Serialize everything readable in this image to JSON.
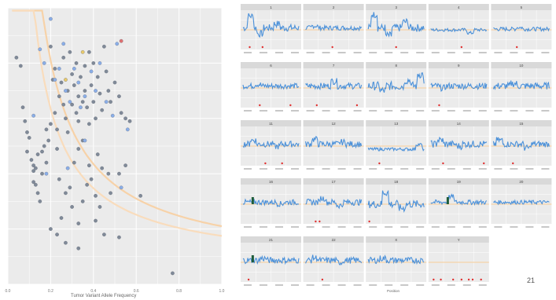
{
  "page_number": "21",
  "chart_data": [
    {
      "type": "scatter",
      "title": "",
      "xlabel": "Tumor Variant Allele Frequency",
      "ylabel": "",
      "xlim": [
        0,
        1
      ],
      "ylim": [
        0,
        1
      ],
      "x_ticks": [
        "0.0",
        "0.2",
        "0.4",
        "0.6",
        "0.8",
        "1.0"
      ],
      "grid": true,
      "curves": [
        {
          "name": "",
          "color": "#f7d2a8",
          "k": 0.15
        },
        {
          "name": "",
          "color": "#f9dcbc",
          "k": 0.115
        }
      ],
      "series": [
        {
          "name": "",
          "color": "#808a98",
          "points": [
            [
              0.04,
              0.82
            ],
            [
              0.06,
              0.79
            ],
            [
              0.07,
              0.64
            ],
            [
              0.08,
              0.59
            ],
            [
              0.09,
              0.55
            ],
            [
              0.09,
              0.48
            ],
            [
              0.1,
              0.53
            ],
            [
              0.11,
              0.45
            ],
            [
              0.12,
              0.43
            ],
            [
              0.12,
              0.41
            ],
            [
              0.13,
              0.42
            ],
            [
              0.12,
              0.37
            ],
            [
              0.13,
              0.36
            ],
            [
              0.14,
              0.33
            ],
            [
              0.15,
              0.3
            ],
            [
              0.14,
              0.47
            ],
            [
              0.16,
              0.48
            ],
            [
              0.17,
              0.5
            ],
            [
              0.16,
              0.4
            ],
            [
              0.18,
              0.56
            ],
            [
              0.18,
              0.44
            ],
            [
              0.19,
              0.52
            ],
            [
              0.2,
              0.58
            ],
            [
              0.2,
              0.86
            ],
            [
              0.21,
              0.74
            ],
            [
              0.22,
              0.78
            ],
            [
              0.22,
              0.62
            ],
            [
              0.23,
              0.56
            ],
            [
              0.23,
              0.49
            ],
            [
              0.24,
              0.68
            ],
            [
              0.25,
              0.73
            ],
            [
              0.26,
              0.82
            ],
            [
              0.26,
              0.65
            ],
            [
              0.27,
              0.6
            ],
            [
              0.28,
              0.7
            ],
            [
              0.28,
              0.55
            ],
            [
              0.29,
              0.84
            ],
            [
              0.3,
              0.76
            ],
            [
              0.3,
              0.65
            ],
            [
              0.31,
              0.72
            ],
            [
              0.32,
              0.8
            ],
            [
              0.32,
              0.62
            ],
            [
              0.33,
              0.68
            ],
            [
              0.33,
              0.59
            ],
            [
              0.34,
              0.75
            ],
            [
              0.35,
              0.52
            ],
            [
              0.35,
              0.66
            ],
            [
              0.36,
              0.79
            ],
            [
              0.36,
              0.7
            ],
            [
              0.37,
              0.64
            ],
            [
              0.38,
              0.84
            ],
            [
              0.38,
              0.58
            ],
            [
              0.39,
              0.72
            ],
            [
              0.4,
              0.8
            ],
            [
              0.4,
              0.66
            ],
            [
              0.41,
              0.6
            ],
            [
              0.42,
              0.75
            ],
            [
              0.43,
              0.69
            ],
            [
              0.44,
              0.63
            ],
            [
              0.45,
              0.86
            ],
            [
              0.46,
              0.77
            ],
            [
              0.47,
              0.7
            ],
            [
              0.48,
              0.66
            ],
            [
              0.5,
              0.73
            ],
            [
              0.52,
              0.68
            ],
            [
              0.53,
              0.62
            ],
            [
              0.55,
              0.6
            ],
            [
              0.57,
              0.59
            ],
            [
              0.33,
              0.49
            ],
            [
              0.31,
              0.44
            ],
            [
              0.38,
              0.43
            ],
            [
              0.37,
              0.36
            ],
            [
              0.42,
              0.47
            ],
            [
              0.44,
              0.42
            ],
            [
              0.47,
              0.4
            ],
            [
              0.52,
              0.4
            ],
            [
              0.55,
              0.43
            ],
            [
              0.39,
              0.38
            ],
            [
              0.41,
              0.32
            ],
            [
              0.43,
              0.28
            ],
            [
              0.48,
              0.33
            ],
            [
              0.35,
              0.3
            ],
            [
              0.29,
              0.35
            ],
            [
              0.24,
              0.38
            ],
            [
              0.27,
              0.33
            ],
            [
              0.3,
              0.28
            ],
            [
              0.33,
              0.22
            ],
            [
              0.25,
              0.24
            ],
            [
              0.2,
              0.2
            ],
            [
              0.23,
              0.18
            ],
            [
              0.27,
              0.15
            ],
            [
              0.41,
              0.23
            ],
            [
              0.33,
              0.13
            ],
            [
              0.45,
              0.18
            ],
            [
              0.52,
              0.17
            ],
            [
              0.62,
              0.32
            ],
            [
              0.77,
              0.04
            ]
          ]
        },
        {
          "name": "",
          "color": "#8aaee8",
          "points": [
            [
              0.2,
              0.96
            ],
            [
              0.15,
              0.85
            ],
            [
              0.17,
              0.8
            ],
            [
              0.22,
              0.74
            ],
            [
              0.24,
              0.78
            ],
            [
              0.26,
              0.87
            ],
            [
              0.27,
              0.7
            ],
            [
              0.29,
              0.66
            ],
            [
              0.31,
              0.78
            ],
            [
              0.33,
              0.73
            ],
            [
              0.34,
              0.64
            ],
            [
              0.36,
              0.68
            ],
            [
              0.39,
              0.77
            ],
            [
              0.41,
              0.7
            ],
            [
              0.43,
              0.8
            ],
            [
              0.46,
              0.66
            ],
            [
              0.49,
              0.61
            ],
            [
              0.51,
              0.87
            ],
            [
              0.56,
              0.56
            ],
            [
              0.36,
              0.52
            ],
            [
              0.18,
              0.4
            ],
            [
              0.53,
              0.35
            ],
            [
              0.28,
              0.42
            ],
            [
              0.12,
              0.61
            ]
          ]
        },
        {
          "name": "",
          "color": "#e8c96a",
          "points": [
            [
              0.35,
              0.84
            ],
            [
              0.27,
              0.74
            ]
          ]
        },
        {
          "name": "",
          "color": "#e07070",
          "points": [
            [
              0.53,
              0.88
            ]
          ]
        }
      ]
    },
    {
      "type": "line",
      "title": "",
      "xlabel": "Position",
      "ylabel": "",
      "layout": "facet grid, 5 columns x 5 rows",
      "panels": [
        {
          "label": "1",
          "base": 0.55,
          "noise": 0.09,
          "pattern": [
            [
              0.08,
              0.3
            ],
            [
              0.25,
              -0.15
            ],
            [
              0.55,
              0.1
            ]
          ],
          "red": [
            0.12,
            0.35
          ]
        },
        {
          "label": "2",
          "base": 0.55,
          "noise": 0.06,
          "pattern": [
            [
              0.1,
              0.05
            ]
          ],
          "red": [
            0.48
          ]
        },
        {
          "label": "3",
          "base": 0.55,
          "noise": 0.1,
          "pattern": [
            [
              0.05,
              0.35
            ],
            [
              0.3,
              -0.2
            ],
            [
              0.6,
              0.15
            ]
          ],
          "red": [
            0.5
          ]
        },
        {
          "label": "4",
          "base": 0.5,
          "noise": 0.04,
          "pattern": [
            [
              0.65,
              -0.08
            ]
          ],
          "red": [
            0.55
          ]
        },
        {
          "label": "5",
          "base": 0.52,
          "noise": 0.05,
          "pattern": [
            [
              0.4,
              0.04
            ]
          ],
          "red": [
            0.42
          ]
        },
        {
          "label": "6",
          "base": 0.55,
          "noise": 0.07,
          "pattern": [
            [
              0.2,
              0.04
            ]
          ],
          "red": [
            0.3,
            0.85
          ]
        },
        {
          "label": "7",
          "base": 0.55,
          "noise": 0.08,
          "pattern": [
            [
              0.45,
              0.12
            ]
          ],
          "red": [
            0.2,
            0.92
          ]
        },
        {
          "label": "8",
          "base": 0.55,
          "noise": 0.11,
          "pattern": [
            [
              0.2,
              -0.12
            ],
            [
              0.65,
              0.15
            ],
            [
              0.88,
              0.3
            ]
          ],
          "red": []
        },
        {
          "label": "9",
          "base": 0.55,
          "noise": 0.08,
          "pattern": [
            [
              0.15,
              -0.05
            ]
          ],
          "red": [
            0.15
          ]
        },
        {
          "label": "10",
          "base": 0.55,
          "noise": 0.09,
          "pattern": [
            [
              0.3,
              0.06
            ]
          ],
          "red": []
        },
        {
          "label": "11",
          "base": 0.55,
          "noise": 0.08,
          "pattern": [
            [
              0.12,
              0.1
            ],
            [
              0.55,
              -0.06
            ]
          ],
          "red": [
            0.4,
            0.7
          ]
        },
        {
          "label": "12",
          "base": 0.55,
          "noise": 0.08,
          "pattern": [
            [
              0.1,
              0.12
            ],
            [
              0.6,
              0.05
            ]
          ],
          "red": []
        },
        {
          "label": "13",
          "base": 0.42,
          "noise": 0.04,
          "pattern": [
            [
              0.85,
              0.12
            ]
          ],
          "red": [
            0.2
          ]
        },
        {
          "label": "14",
          "base": 0.55,
          "noise": 0.09,
          "pattern": [
            [
              0.1,
              0.1
            ],
            [
              0.45,
              -0.05
            ]
          ],
          "red": [
            0.22,
            0.95
          ]
        },
        {
          "label": "15",
          "base": 0.55,
          "noise": 0.08,
          "pattern": [
            [
              0.05,
              0.1
            ],
            [
              0.55,
              -0.1
            ]
          ],
          "red": [
            0.35
          ]
        },
        {
          "label": "16",
          "base": 0.55,
          "noise": 0.07,
          "pattern": [
            [
              0.6,
              -0.04
            ]
          ],
          "red": []
        },
        {
          "label": "17",
          "base": 0.55,
          "noise": 0.08,
          "pattern": [
            [
              0.25,
              0.1
            ],
            [
              0.55,
              -0.08
            ]
          ],
          "red": [
            0.18,
            0.25
          ]
        },
        {
          "label": "18",
          "base": 0.5,
          "noise": 0.1,
          "pattern": [
            [
              0.25,
              0.3
            ],
            [
              0.55,
              -0.1
            ]
          ],
          "red": [
            0.02
          ]
        },
        {
          "label": "19",
          "base": 0.55,
          "noise": 0.06,
          "pattern": [
            [
              0.3,
              0.14
            ]
          ],
          "red": []
        },
        {
          "label": "20",
          "base": 0.55,
          "noise": 0.05,
          "pattern": [],
          "red": []
        },
        {
          "label": "21",
          "base": 0.55,
          "noise": 0.08,
          "pattern": [
            [
              0.3,
              0.05
            ]
          ],
          "red": [
            0.1
          ]
        },
        {
          "label": "22",
          "base": 0.55,
          "noise": 0.08,
          "pattern": [
            [
              0.1,
              0.06
            ],
            [
              0.55,
              -0.05
            ]
          ],
          "red": [
            0.3
          ]
        },
        {
          "label": "X",
          "base": 0.55,
          "noise": 0.08,
          "pattern": [
            [
              0.2,
              0.05
            ]
          ],
          "red": []
        },
        {
          "label": "Y",
          "base": 0.5,
          "noise": 0.02,
          "pattern": [],
          "red": [
            0.05,
            0.18,
            0.4,
            0.55,
            0.68,
            0.75,
            0.9
          ]
        }
      ],
      "series": [
        {
          "name": "",
          "color": "#4a90d9"
        },
        {
          "name": "",
          "color": "#1e5c3a"
        },
        {
          "name": "",
          "color": "#f7d2a8"
        },
        {
          "name": "",
          "color": "#e03030"
        }
      ]
    }
  ]
}
